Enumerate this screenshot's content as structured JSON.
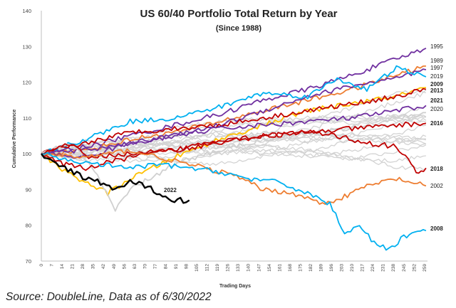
{
  "chart_data": {
    "type": "line",
    "title": "US 60/40 Portfolio Total Return by Year",
    "subtitle": "(Since 1988)",
    "xlabel": "Trading Days",
    "ylabel": "Cumulative Performance",
    "xlim": [
      0,
      261
    ],
    "ylim": [
      70,
      140
    ],
    "yticks": [
      70,
      80,
      90,
      100,
      110,
      120,
      130,
      140
    ],
    "xticks": [
      0,
      7,
      14,
      21,
      28,
      35,
      42,
      49,
      56,
      63,
      70,
      77,
      84,
      91,
      98,
      105,
      112,
      119,
      126,
      133,
      140,
      147,
      154,
      161,
      168,
      175,
      182,
      189,
      196,
      203,
      210,
      217,
      224,
      231,
      238,
      245,
      252,
      259
    ],
    "grid": false,
    "source": "Source: DoubleLine, Data as of 6/30/2022",
    "series": [
      {
        "name": "1995",
        "color": "#7030a0",
        "end_value": 129.5,
        "x": [
          0,
          30,
          60,
          90,
          120,
          150,
          180,
          210,
          230,
          250,
          260
        ],
        "values": [
          100,
          102,
          105,
          108,
          111,
          115,
          118,
          122,
          125,
          128,
          129.5
        ]
      },
      {
        "name": "1989",
        "color": "#ed7d31",
        "end_value": 124.5,
        "x": [
          0,
          30,
          60,
          90,
          120,
          150,
          180,
          210,
          240,
          260
        ],
        "values": [
          100,
          101,
          104,
          106,
          109,
          112,
          115,
          118,
          122,
          124.5
        ]
      },
      {
        "name": "1997",
        "color": "#7030a0",
        "end_value": 123.5,
        "x": [
          0,
          30,
          60,
          90,
          120,
          150,
          180,
          210,
          240,
          260
        ],
        "values": [
          100,
          99,
          103,
          105,
          108,
          112,
          116,
          119,
          121,
          123.5
        ]
      },
      {
        "name": "2019",
        "color": "#00b0f0",
        "end_value": 121.5,
        "x": [
          0,
          30,
          60,
          90,
          120,
          150,
          180,
          200,
          220,
          240,
          260
        ],
        "values": [
          100,
          104,
          109,
          110,
          113,
          117,
          116,
          121,
          118,
          124,
          121.5
        ]
      },
      {
        "name": "2009",
        "color": "#ffc000",
        "end_value": 118.5,
        "x": [
          0,
          20,
          45,
          60,
          90,
          120,
          150,
          180,
          210,
          240,
          260
        ],
        "values": [
          100,
          94,
          89,
          93,
          99,
          104,
          108,
          112,
          114,
          116,
          118.5
        ]
      },
      {
        "name": "2013",
        "color": "#c00000",
        "end_value": 118,
        "x": [
          0,
          30,
          60,
          90,
          120,
          150,
          180,
          210,
          240,
          260
        ],
        "values": [
          100,
          103,
          106,
          107,
          108,
          110,
          112,
          114,
          116,
          118
        ]
      },
      {
        "name": "2021",
        "color": "#7030a0",
        "end_value": 113.5,
        "x": [
          0,
          30,
          60,
          90,
          120,
          150,
          180,
          210,
          240,
          260
        ],
        "values": [
          100,
          101,
          103,
          105,
          107,
          108,
          109,
          110,
          112,
          113.5
        ]
      },
      {
        "name": "2020",
        "color": "#d0d0d0",
        "end_value": 111.5,
        "x": [
          0,
          20,
          38,
          50,
          60,
          90,
          120,
          150,
          180,
          210,
          240,
          260
        ],
        "values": [
          100,
          103,
          94,
          84,
          90,
          97,
          101,
          104,
          106,
          107,
          110,
          111.5
        ]
      },
      {
        "name": "2016",
        "color": "#c00000",
        "end_value": 108.5,
        "x": [
          0,
          15,
          30,
          60,
          90,
          120,
          150,
          180,
          210,
          240,
          260
        ],
        "values": [
          100,
          97,
          96,
          99,
          101,
          104,
          105,
          106,
          107,
          108,
          108.5
        ]
      },
      {
        "name": "2018",
        "color": "#c00000",
        "end_value": 96,
        "x": [
          0,
          20,
          30,
          60,
          90,
          120,
          150,
          180,
          200,
          220,
          240,
          250,
          255,
          260
        ],
        "values": [
          100,
          103,
          99,
          100,
          101,
          103,
          105,
          106,
          105,
          103,
          102,
          97,
          94,
          96
        ]
      },
      {
        "name": "2002",
        "color": "#ed7d31",
        "end_value": 91,
        "x": [
          0,
          30,
          60,
          90,
          110,
          130,
          150,
          170,
          190,
          205,
          220,
          240,
          260
        ],
        "values": [
          100,
          99,
          101,
          98,
          96,
          94,
          90,
          89,
          86,
          88,
          91,
          93,
          91
        ]
      },
      {
        "name": "2022",
        "color": "#000000",
        "end_value": 87,
        "x": [
          0,
          10,
          20,
          30,
          40,
          50,
          60,
          70,
          80,
          90,
          100
        ],
        "values": [
          100,
          97,
          95,
          93,
          92,
          90,
          92,
          91,
          89,
          87,
          87
        ]
      },
      {
        "name": "2008",
        "color": "#00b0f0",
        "end_value": 78.5,
        "x": [
          0,
          20,
          40,
          60,
          80,
          100,
          120,
          140,
          160,
          180,
          195,
          205,
          215,
          225,
          235,
          245,
          260
        ],
        "values": [
          100,
          98,
          97,
          96,
          97,
          96,
          95,
          93,
          92,
          89,
          86,
          78,
          80,
          75,
          73,
          77,
          78.5
        ]
      }
    ]
  }
}
